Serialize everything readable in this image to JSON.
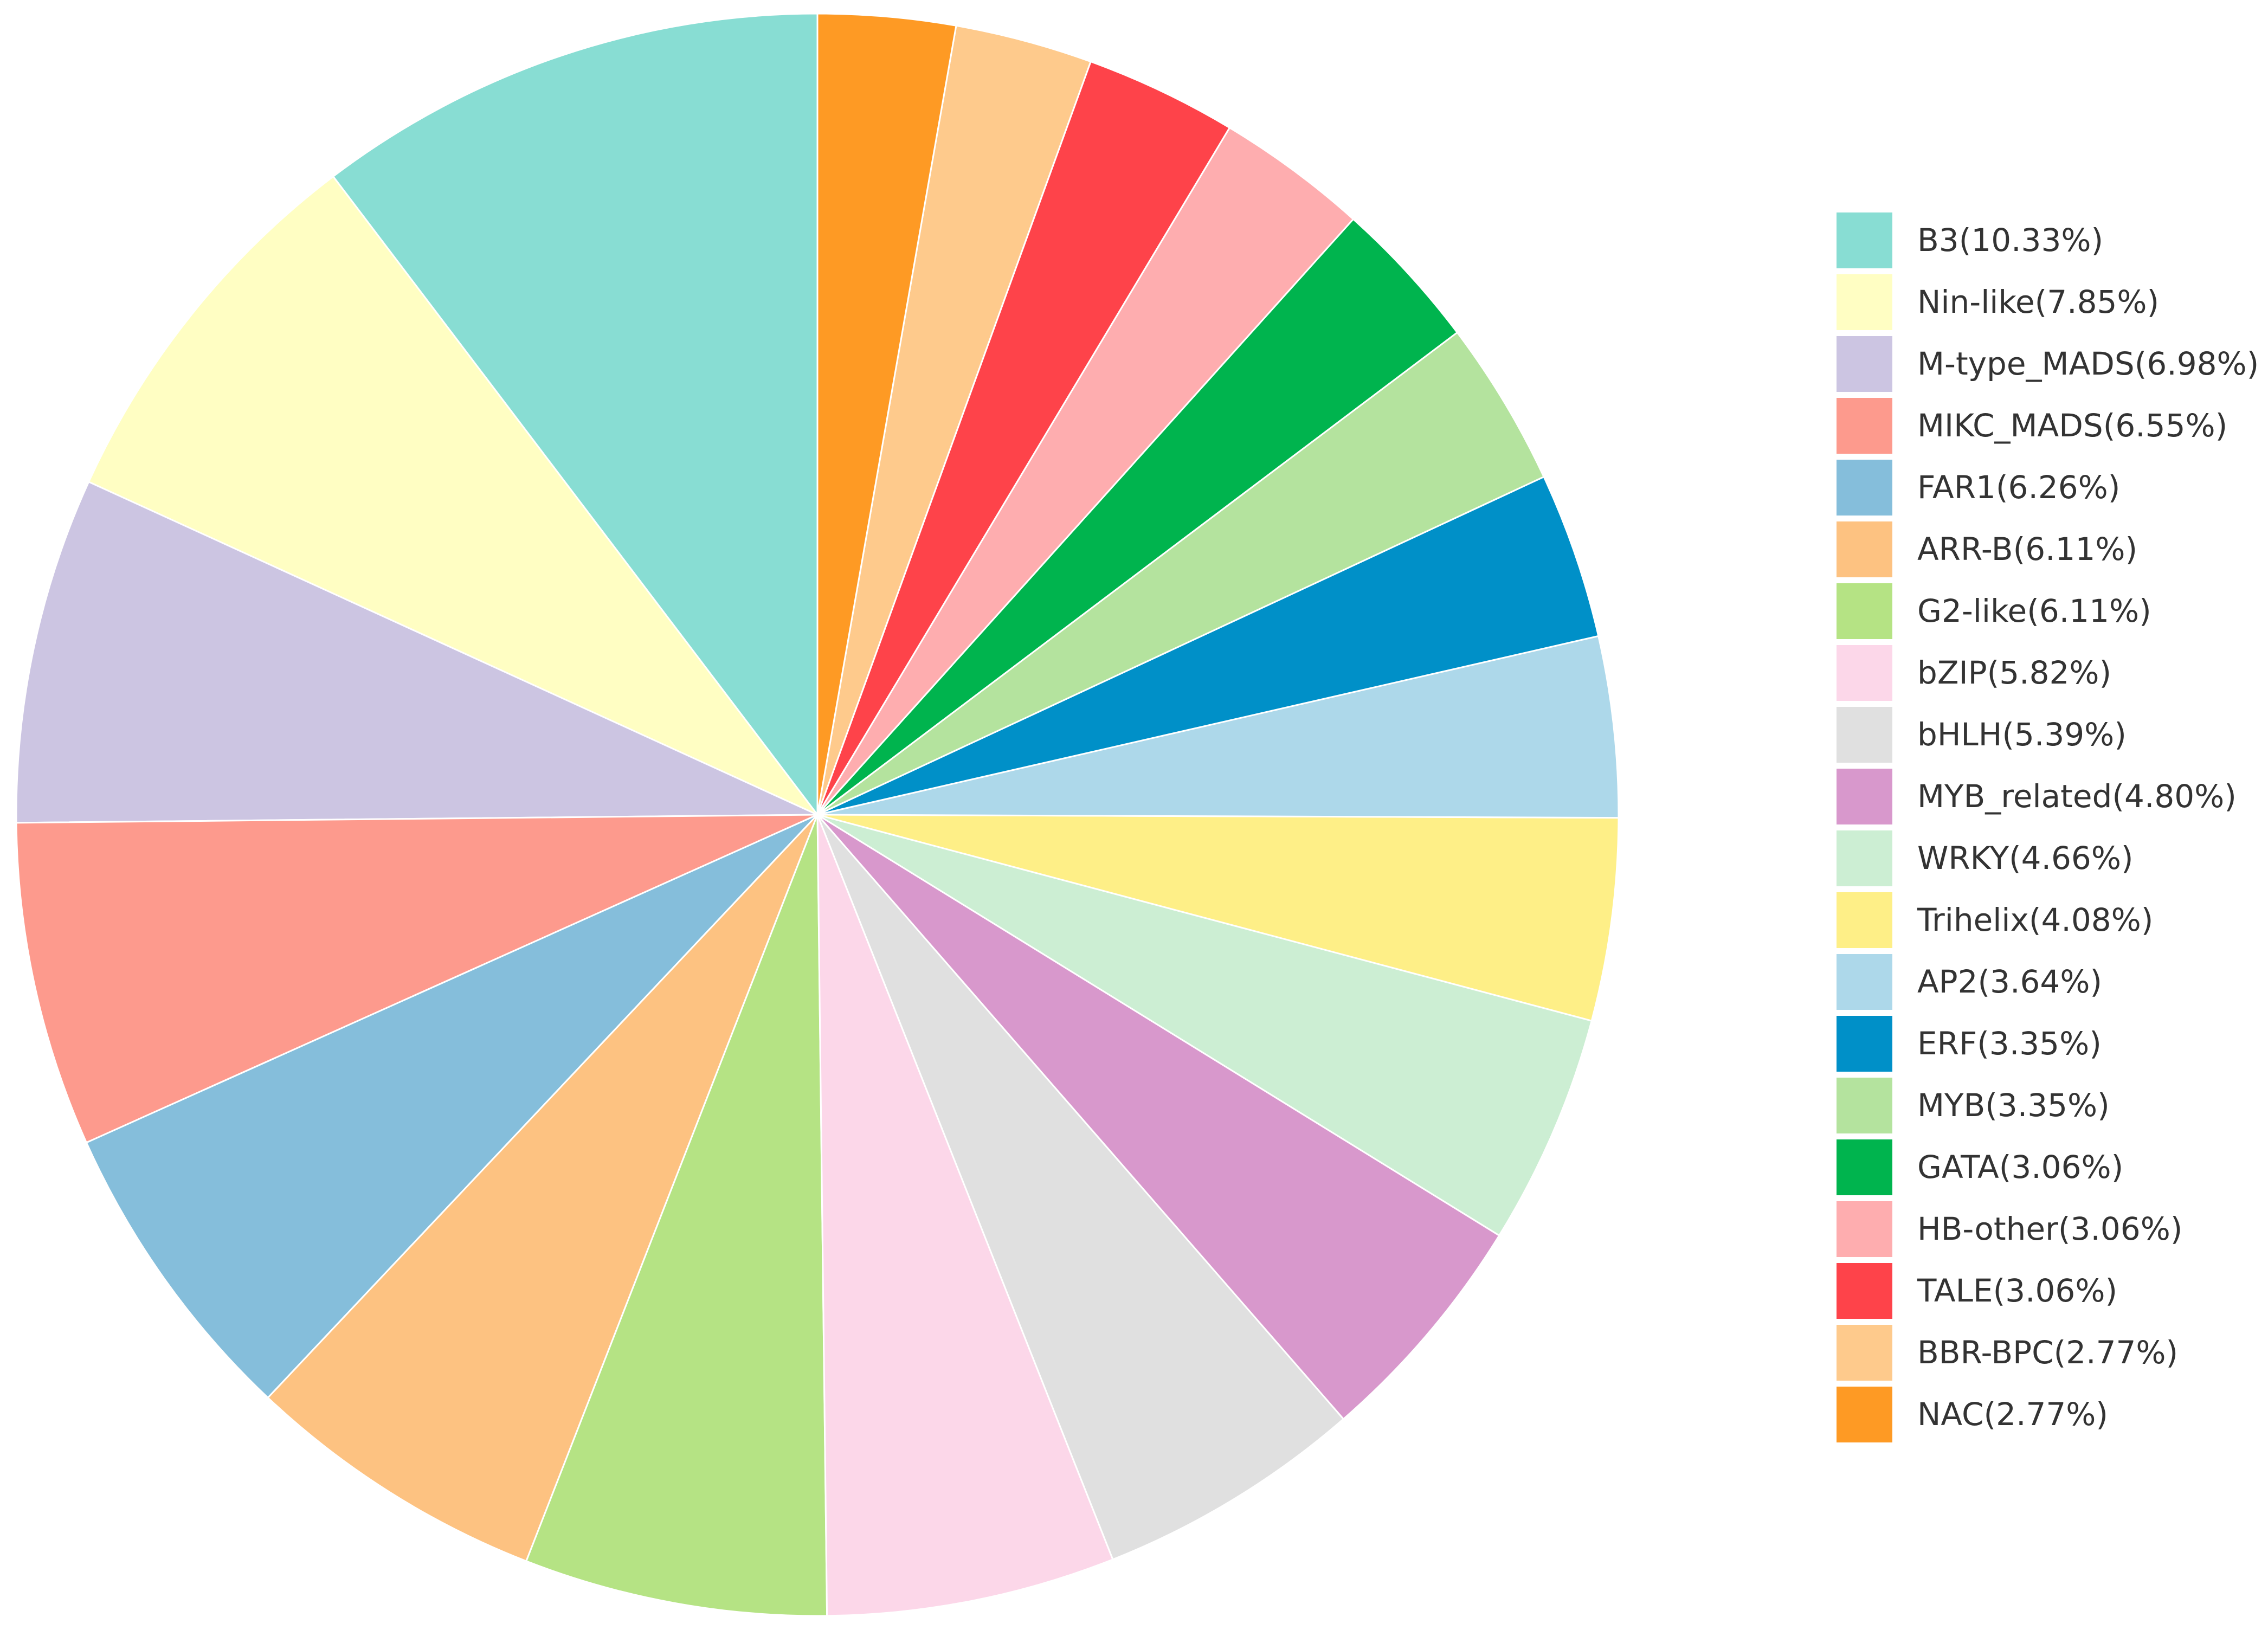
{
  "chart_data": {
    "type": "pie",
    "title": "",
    "start_angle_deg": 0,
    "direction": "clockwise",
    "legend_position": "right",
    "series": [
      {
        "label": "B3(10.33%)",
        "value": 10.33,
        "color": "#88DDD3"
      },
      {
        "label": "Nin-like(7.85%)",
        "value": 7.85,
        "color": "#FFFEC3"
      },
      {
        "label": "M-type_MADS(6.98%)",
        "value": 6.98,
        "color": "#CCC5E2"
      },
      {
        "label": "MIKC_MADS(6.55%)",
        "value": 6.55,
        "color": "#FD9A8D"
      },
      {
        "label": "FAR1(6.26%)",
        "value": 6.26,
        "color": "#85BEDB"
      },
      {
        "label": "ARR-B(6.11%)",
        "value": 6.11,
        "color": "#FDC281"
      },
      {
        "label": "G2-like(6.11%)",
        "value": 6.11,
        "color": "#B5E384"
      },
      {
        "label": "bZIP(5.82%)",
        "value": 5.82,
        "color": "#FCD7E9"
      },
      {
        "label": "bHLH(5.39%)",
        "value": 5.39,
        "color": "#E0E0E0"
      },
      {
        "label": "MYB_related(4.80%)",
        "value": 4.8,
        "color": "#D898CC"
      },
      {
        "label": "WRKY(4.66%)",
        "value": 4.66,
        "color": "#CCEED3"
      },
      {
        "label": "Trihelix(4.08%)",
        "value": 4.08,
        "color": "#FEEF87"
      },
      {
        "label": "AP2(3.64%)",
        "value": 3.64,
        "color": "#ADD8EA"
      },
      {
        "label": "ERF(3.35%)",
        "value": 3.35,
        "color": "#0090C8"
      },
      {
        "label": "MYB(3.35%)",
        "value": 3.35,
        "color": "#B4E39E"
      },
      {
        "label": "GATA(3.06%)",
        "value": 3.06,
        "color": "#00B44E"
      },
      {
        "label": "HB-other(3.06%)",
        "value": 3.06,
        "color": "#FEADAF"
      },
      {
        "label": "TALE(3.06%)",
        "value": 3.06,
        "color": "#FE434A"
      },
      {
        "label": "BBR-BPC(2.77%)",
        "value": 2.77,
        "color": "#FECA8C"
      },
      {
        "label": "NAC(2.77%)",
        "value": 2.77,
        "color": "#FE9A24"
      }
    ]
  }
}
